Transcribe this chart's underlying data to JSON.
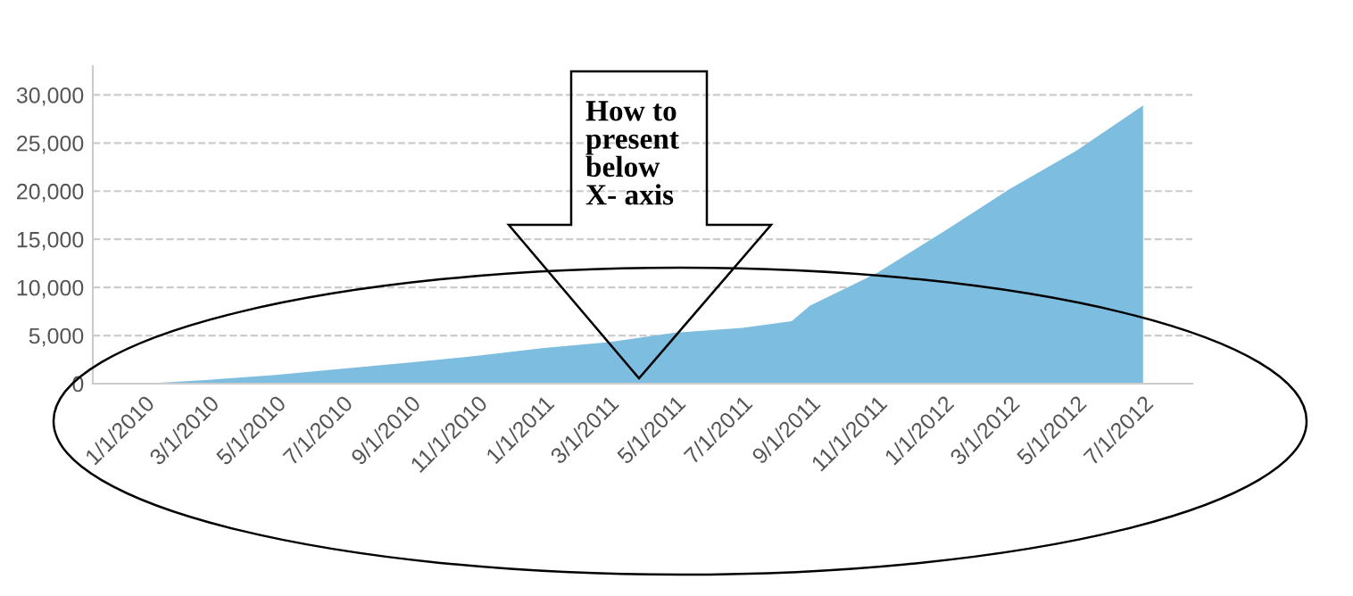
{
  "chart_data": {
    "type": "area",
    "x": [
      "2010-01-01",
      "2010-03-01",
      "2010-05-01",
      "2010-07-01",
      "2010-09-01",
      "2010-11-01",
      "2011-01-01",
      "2011-03-01",
      "2011-05-01",
      "2011-07-01",
      "2011-08-15",
      "2011-09-01",
      "2011-11-01",
      "2012-01-01",
      "2012-03-01",
      "2012-05-01",
      "2012-07-01"
    ],
    "series": [
      {
        "color": "#7dbde0",
        "values": [
          0,
          400,
          900,
          1550,
          2200,
          2900,
          3700,
          4300,
          5300,
          5800,
          6500,
          8100,
          11500,
          15800,
          20200,
          24200,
          28900
        ]
      }
    ],
    "xlim": [
      "2009-11-15",
      "2012-08-15"
    ],
    "xticks": [
      {
        "value": "2010-01-01",
        "label": "1/1/2010"
      },
      {
        "value": "2010-03-01",
        "label": "3/1/2010"
      },
      {
        "value": "2010-05-01",
        "label": "5/1/2010"
      },
      {
        "value": "2010-07-01",
        "label": "7/1/2010"
      },
      {
        "value": "2010-09-01",
        "label": "9/1/2010"
      },
      {
        "value": "2010-11-01",
        "label": "11/1/2010"
      },
      {
        "value": "2011-01-01",
        "label": "1/1/2011"
      },
      {
        "value": "2011-03-01",
        "label": "3/1/2011"
      },
      {
        "value": "2011-05-01",
        "label": "5/1/2011"
      },
      {
        "value": "2011-07-01",
        "label": "7/1/2011"
      },
      {
        "value": "2011-09-01",
        "label": "9/1/2011"
      },
      {
        "value": "2011-11-01",
        "label": "11/1/2011"
      },
      {
        "value": "2012-01-01",
        "label": "1/1/2012"
      },
      {
        "value": "2012-03-01",
        "label": "3/1/2012"
      },
      {
        "value": "2012-05-01",
        "label": "5/1/2012"
      },
      {
        "value": "2012-07-01",
        "label": "7/1/2012"
      }
    ],
    "ylim": [
      0,
      33000
    ],
    "yticks": [
      0,
      {
        "value": 5000,
        "label": "5,000"
      },
      {
        "value": 10000,
        "label": "10,000"
      },
      {
        "value": 15000,
        "label": "15,000"
      },
      {
        "value": 20000,
        "label": "20,000"
      },
      {
        "value": 25000,
        "label": "25,000"
      },
      {
        "value": 30000,
        "label": "30,000"
      }
    ],
    "grid": "y",
    "annotations": [
      "How to\npresent\nbelow\nX- axis"
    ]
  }
}
